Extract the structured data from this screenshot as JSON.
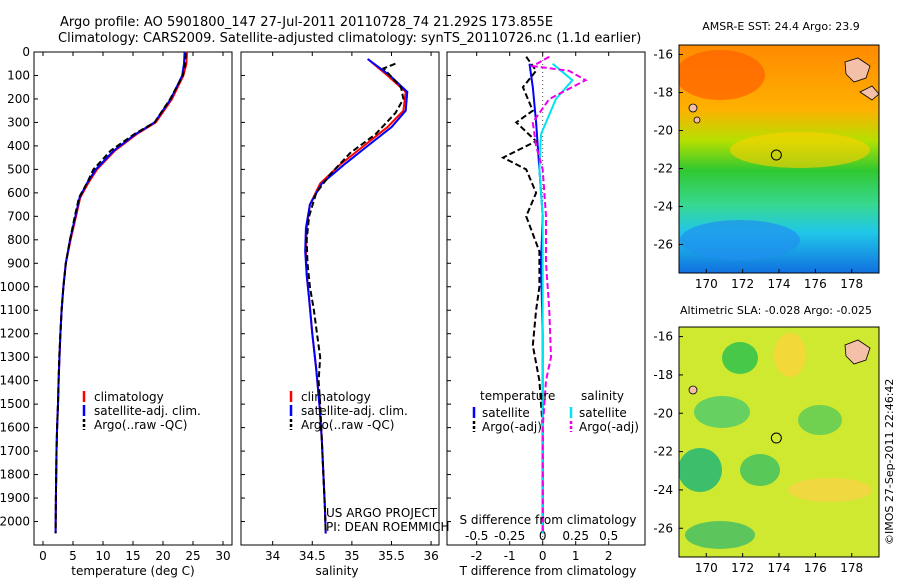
{
  "header": {
    "line1": "Argo profile: AO 5901800_147 27-Jul-2011 20110728_74 21.292S 173.855E",
    "line2": "Climatology: CARS2009. Satellite-adjusted climatology: synTS_20110726.nc (1.1d earlier)"
  },
  "colors": {
    "climatology": "#ff0000",
    "satellite": "#0000ff",
    "argo": "#000000",
    "satellite_s": "#00e5ee",
    "argo_s": "#ee00ee"
  },
  "project_text": {
    "line1": "US ARGO PROJECT",
    "line2": "PI: DEAN ROEMMICH"
  },
  "timestamp": "©IMOS 27-Sep-2011 22:46:42",
  "chart_data": [
    {
      "type": "line",
      "xlabel": "temperature (deg C)",
      "xticks": [
        0,
        5,
        10,
        15,
        20,
        25,
        30
      ],
      "xlim": [
        -1.5,
        31.5
      ],
      "ylim": [
        0,
        2100
      ],
      "yticks": [
        0,
        100,
        200,
        300,
        400,
        500,
        600,
        700,
        800,
        900,
        1000,
        1100,
        1200,
        1300,
        1400,
        1500,
        1600,
        1700,
        1800,
        1900,
        2000
      ],
      "legend": [
        "climatology",
        "satellite-adj. clim.",
        "Argo(..raw -QC)"
      ],
      "series": [
        {
          "name": "climatology",
          "color": "#ff0000",
          "dash": "",
          "values": [
            [
              24.0,
              0
            ],
            [
              23.9,
              50
            ],
            [
              23.4,
              100
            ],
            [
              21.5,
              200
            ],
            [
              18.8,
              300
            ],
            [
              15.6,
              350
            ],
            [
              12.0,
              420
            ],
            [
              9.0,
              500
            ],
            [
              7.5,
              560
            ],
            [
              6.2,
              620
            ],
            [
              5.5,
              700
            ],
            [
              4.6,
              800
            ],
            [
              3.8,
              900
            ],
            [
              3.4,
              1000
            ],
            [
              3.1,
              1100
            ],
            [
              2.9,
              1200
            ],
            [
              2.75,
              1300
            ],
            [
              2.6,
              1400
            ],
            [
              2.5,
              1500
            ],
            [
              2.35,
              1600
            ],
            [
              2.25,
              1700
            ],
            [
              2.2,
              1800
            ],
            [
              2.15,
              1900
            ],
            [
              2.1,
              2050
            ]
          ]
        },
        {
          "name": "satellite-adj. clim.",
          "color": "#0000ff",
          "dash": "",
          "values": [
            [
              23.6,
              0
            ],
            [
              23.5,
              50
            ],
            [
              23.2,
              100
            ],
            [
              21.3,
              200
            ],
            [
              18.6,
              300
            ],
            [
              15.4,
              350
            ],
            [
              11.8,
              420
            ],
            [
              8.8,
              500
            ],
            [
              7.3,
              560
            ],
            [
              6.1,
              620
            ],
            [
              5.4,
              700
            ],
            [
              4.5,
              800
            ],
            [
              3.8,
              900
            ],
            [
              3.4,
              1000
            ],
            [
              3.1,
              1100
            ],
            [
              2.9,
              1200
            ],
            [
              2.75,
              1300
            ],
            [
              2.6,
              1400
            ],
            [
              2.5,
              1500
            ],
            [
              2.35,
              1600
            ],
            [
              2.25,
              1700
            ],
            [
              2.2,
              1800
            ],
            [
              2.15,
              1900
            ],
            [
              2.1,
              2050
            ]
          ]
        },
        {
          "name": "Argo(..raw -QC)",
          "color": "#000000",
          "dash": "6,3",
          "values": [
            [
              23.8,
              5
            ],
            [
              23.7,
              50
            ],
            [
              23.3,
              100
            ],
            [
              21.2,
              200
            ],
            [
              18.6,
              300
            ],
            [
              15.2,
              350
            ],
            [
              11.3,
              420
            ],
            [
              8.4,
              500
            ],
            [
              7.3,
              560
            ],
            [
              6.0,
              620
            ],
            [
              5.3,
              700
            ],
            [
              4.5,
              800
            ],
            [
              3.8,
              900
            ],
            [
              3.4,
              1000
            ],
            [
              3.1,
              1100
            ],
            [
              2.9,
              1200
            ],
            [
              2.7,
              1300
            ],
            [
              2.6,
              1400
            ],
            [
              2.5,
              1500
            ],
            [
              2.35,
              1600
            ],
            [
              2.25,
              1700
            ],
            [
              2.2,
              1800
            ],
            [
              2.15,
              1900
            ],
            [
              2.1,
              2050
            ]
          ]
        }
      ]
    },
    {
      "type": "line",
      "xlabel": "salinity",
      "xticks": [
        34,
        34.5,
        35,
        35.5,
        36
      ],
      "xlim": [
        33.6,
        36.1
      ],
      "ylim": [
        0,
        2100
      ],
      "legend": [
        "climatology",
        "satellite-adj. clim.",
        "Argo(..raw -QC)"
      ],
      "series": [
        {
          "name": "climatology",
          "color": "#ff0000",
          "dash": "",
          "values": [
            [
              35.2,
              30
            ],
            [
              35.45,
              100
            ],
            [
              35.68,
              170
            ],
            [
              35.65,
              250
            ],
            [
              35.45,
              320
            ],
            [
              35.15,
              400
            ],
            [
              34.85,
              480
            ],
            [
              34.6,
              560
            ],
            [
              34.47,
              650
            ],
            [
              34.43,
              750
            ],
            [
              34.42,
              850
            ],
            [
              34.43,
              950
            ],
            [
              34.46,
              1050
            ],
            [
              34.5,
              1200
            ],
            [
              34.55,
              1350
            ],
            [
              34.59,
              1500
            ],
            [
              34.62,
              1650
            ],
            [
              34.64,
              1800
            ],
            [
              34.66,
              1950
            ],
            [
              34.67,
              2050
            ]
          ]
        },
        {
          "name": "satellite-adj. clim.",
          "color": "#0000ff",
          "dash": "",
          "values": [
            [
              35.2,
              30
            ],
            [
              35.48,
              100
            ],
            [
              35.7,
              170
            ],
            [
              35.68,
              250
            ],
            [
              35.5,
              320
            ],
            [
              35.2,
              400
            ],
            [
              34.9,
              480
            ],
            [
              34.62,
              560
            ],
            [
              34.47,
              650
            ],
            [
              34.42,
              750
            ],
            [
              34.41,
              850
            ],
            [
              34.43,
              950
            ],
            [
              34.46,
              1050
            ],
            [
              34.5,
              1200
            ],
            [
              34.55,
              1350
            ],
            [
              34.59,
              1500
            ],
            [
              34.62,
              1650
            ],
            [
              34.64,
              1800
            ],
            [
              34.66,
              1950
            ],
            [
              34.67,
              2050
            ]
          ]
        },
        {
          "name": "Argo(..raw -QC)",
          "color": "#000000",
          "dash": "6,3",
          "values": [
            [
              35.55,
              50
            ],
            [
              35.4,
              70
            ],
            [
              35.62,
              150
            ],
            [
              35.65,
              200
            ],
            [
              35.55,
              260
            ],
            [
              35.3,
              350
            ],
            [
              34.98,
              430
            ],
            [
              34.73,
              520
            ],
            [
              34.55,
              600
            ],
            [
              34.46,
              700
            ],
            [
              34.43,
              800
            ],
            [
              34.44,
              900
            ],
            [
              34.47,
              1000
            ],
            [
              34.52,
              1100
            ],
            [
              34.56,
              1200
            ],
            [
              34.6,
              1300
            ],
            [
              34.58,
              1400
            ],
            [
              34.6,
              1500
            ],
            [
              34.62,
              1650
            ],
            [
              34.64,
              1800
            ],
            [
              34.66,
              1950
            ],
            [
              34.67,
              2050
            ]
          ]
        }
      ]
    },
    {
      "type": "line",
      "xlabel": "T difference from climatology",
      "xlabel_top": "S difference from climatology",
      "xticks": [
        -2,
        -1,
        0,
        1,
        2
      ],
      "xticks_top": [
        "-0.5",
        "-0.25",
        "0",
        "0.25",
        "0.5"
      ],
      "xlim": [
        -2.9,
        3.1
      ],
      "ylim": [
        0,
        2100
      ],
      "legend_groups": [
        {
          "title": "temperature",
          "items": [
            "satellite",
            "Argo(-adj)"
          ]
        },
        {
          "title": "salinity",
          "items": [
            "satellite",
            "Argo(-adj)"
          ]
        }
      ],
      "series": [
        {
          "name": "T satellite",
          "color": "#0000ff",
          "dash": "",
          "values": [
            [
              -0.4,
              50
            ],
            [
              -0.3,
              150
            ],
            [
              -0.2,
              300
            ],
            [
              -0.1,
              500
            ],
            [
              0.0,
              700
            ],
            [
              -0.05,
              900
            ],
            [
              0.0,
              1200
            ],
            [
              0.0,
              2050
            ]
          ]
        },
        {
          "name": "T Argo(-adj)",
          "color": "#000000",
          "dash": "6,3",
          "values": [
            [
              -0.5,
              20
            ],
            [
              -0.2,
              80
            ],
            [
              -0.6,
              150
            ],
            [
              -0.3,
              250
            ],
            [
              -0.8,
              300
            ],
            [
              -0.2,
              380
            ],
            [
              -1.2,
              450
            ],
            [
              -0.5,
              500
            ],
            [
              -0.2,
              600
            ],
            [
              -0.5,
              700
            ],
            [
              -0.1,
              850
            ],
            [
              -0.1,
              1000
            ],
            [
              -0.2,
              1100
            ],
            [
              -0.3,
              1250
            ],
            [
              -0.1,
              1400
            ],
            [
              0.0,
              1600
            ],
            [
              0.0,
              2050
            ]
          ]
        },
        {
          "name": "S satellite",
          "color": "#00e5ee",
          "dash": "",
          "values": [
            [
              0.3,
              50
            ],
            [
              0.9,
              120
            ],
            [
              0.4,
              200
            ],
            [
              -0.05,
              350
            ],
            [
              -0.1,
              500
            ],
            [
              0.0,
              700
            ],
            [
              0.0,
              900
            ],
            [
              0.0,
              1200
            ],
            [
              0.0,
              2050
            ]
          ]
        },
        {
          "name": "S Argo(-adj)",
          "color": "#ee00ee",
          "dash": "6,3",
          "values": [
            [
              0.2,
              20
            ],
            [
              -0.3,
              60
            ],
            [
              0.8,
              80
            ],
            [
              1.3,
              120
            ],
            [
              0.2,
              200
            ],
            [
              -0.3,
              300
            ],
            [
              -0.2,
              400
            ],
            [
              0.0,
              500
            ],
            [
              0.1,
              700
            ],
            [
              0.1,
              900
            ],
            [
              0.2,
              1100
            ],
            [
              0.25,
              1300
            ],
            [
              0.1,
              1400
            ],
            [
              0.0,
              1600
            ],
            [
              0.0,
              2050
            ]
          ]
        }
      ]
    },
    {
      "type": "heatmap",
      "title": "AMSR-E SST: 24.4  Argo: 23.9",
      "xticks": [
        170,
        172,
        174,
        176,
        178
      ],
      "yticks": [
        -16,
        -18,
        -20,
        -22,
        -24,
        -26
      ],
      "xlim": [
        168.5,
        179.5
      ],
      "ylim": [
        -27.5,
        -15.5
      ],
      "argo_position": [
        173.855,
        -21.292
      ]
    },
    {
      "type": "heatmap",
      "title": "Altimetric SLA: -0.028  Argo: -0.025",
      "xticks": [
        170,
        172,
        174,
        176,
        178
      ],
      "yticks": [
        -16,
        -18,
        -20,
        -22,
        -24,
        -26
      ],
      "xlim": [
        168.5,
        179.5
      ],
      "ylim": [
        -27.5,
        -15.5
      ],
      "argo_position": [
        173.855,
        -21.292
      ]
    }
  ]
}
